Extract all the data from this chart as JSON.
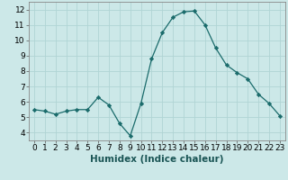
{
  "x": [
    0,
    1,
    2,
    3,
    4,
    5,
    6,
    7,
    8,
    9,
    10,
    11,
    12,
    13,
    14,
    15,
    16,
    17,
    18,
    19,
    20,
    21,
    22,
    23
  ],
  "y": [
    5.5,
    5.4,
    5.2,
    5.4,
    5.5,
    5.5,
    6.3,
    5.8,
    4.6,
    3.8,
    5.9,
    8.8,
    10.5,
    11.5,
    11.85,
    11.9,
    11.0,
    9.5,
    8.4,
    7.9,
    7.5,
    6.5,
    5.9,
    5.1
  ],
  "line_color": "#1a6b6b",
  "marker_color": "#1a6b6b",
  "bg_color": "#cce8e8",
  "grid_color": "#b0d4d4",
  "xlabel": "Humidex (Indice chaleur)",
  "xlabel_fontsize": 7.5,
  "tick_fontsize": 6.5,
  "ylim": [
    3.5,
    12.5
  ],
  "xlim": [
    -0.5,
    23.5
  ],
  "yticks": [
    4,
    5,
    6,
    7,
    8,
    9,
    10,
    11,
    12
  ],
  "xticks": [
    0,
    1,
    2,
    3,
    4,
    5,
    6,
    7,
    8,
    9,
    10,
    11,
    12,
    13,
    14,
    15,
    16,
    17,
    18,
    19,
    20,
    21,
    22,
    23
  ]
}
